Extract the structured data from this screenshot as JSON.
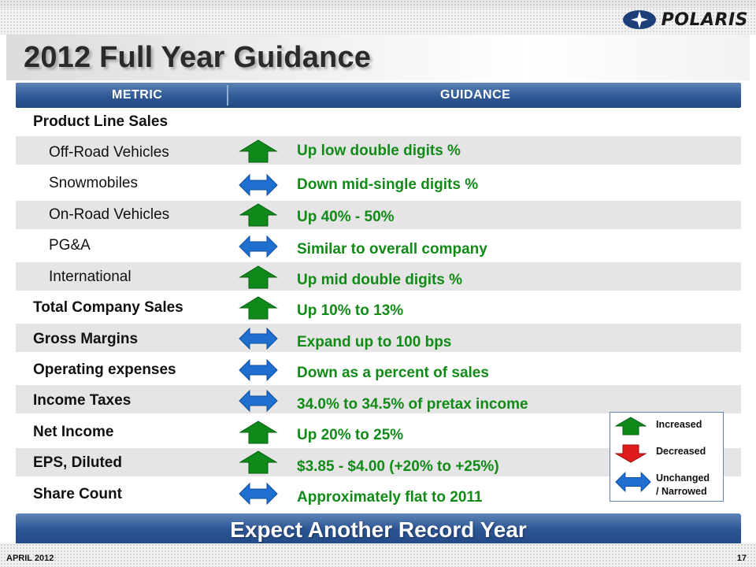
{
  "brand": {
    "name": "POLARIS"
  },
  "title": "2012 Full Year Guidance",
  "columns": {
    "metric": "METRIC",
    "guidance": "GUIDANCE"
  },
  "section_header": "Product Line Sales",
  "rows": [
    {
      "metric": "Off-Road Vehicles",
      "guidance": "Up low double digits %",
      "indicator": "increased"
    },
    {
      "metric": "Snowmobiles",
      "guidance": "Down mid-single digits %",
      "indicator": "unchanged"
    },
    {
      "metric": "On-Road Vehicles",
      "guidance": "Up 40% - 50%",
      "indicator": "increased"
    },
    {
      "metric": "PG&A",
      "guidance": "Similar to overall company",
      "indicator": "unchanged"
    },
    {
      "metric": "International",
      "guidance": "Up mid double digits %",
      "indicator": "increased"
    },
    {
      "metric": "Total Company Sales",
      "guidance": "Up 10% to 13%",
      "indicator": "increased"
    },
    {
      "metric": "Gross Margins",
      "guidance": "Expand up to 100 bps",
      "indicator": "unchanged"
    },
    {
      "metric": "Operating expenses",
      "guidance": "Down as a percent of sales",
      "indicator": "unchanged"
    },
    {
      "metric": "Income Taxes",
      "guidance": "34.0% to 34.5% of pretax income",
      "indicator": "unchanged"
    },
    {
      "metric": "Net Income",
      "guidance": "Up 20% to 25%",
      "indicator": "increased"
    },
    {
      "metric": "EPS, Diluted",
      "guidance": "$3.85 - $4.00 (+20% to +25%)",
      "indicator": "increased"
    },
    {
      "metric": "Share Count",
      "guidance": "Approximately flat to 2011",
      "indicator": "unchanged"
    }
  ],
  "legend": {
    "increased": "Increased",
    "decreased": "Decreased",
    "unchanged_line1": "Unchanged",
    "unchanged_line2": "/ Narrowed"
  },
  "banner": "Expect Another Record Year",
  "footer": {
    "date": "APRIL 2012",
    "page": "17"
  },
  "colors": {
    "header_blue": "#2f5996",
    "guidance_green": "#128a18",
    "arrow_up_green": "#0f8a1a",
    "arrow_down_red": "#e01b1b",
    "arrow_side_blue": "#1f6fd0",
    "stripe_gray": "#e5e5e5"
  },
  "icons": {
    "increased": "green-up-arrow-icon",
    "decreased": "red-down-arrow-icon",
    "unchanged": "blue-double-arrow-icon"
  }
}
